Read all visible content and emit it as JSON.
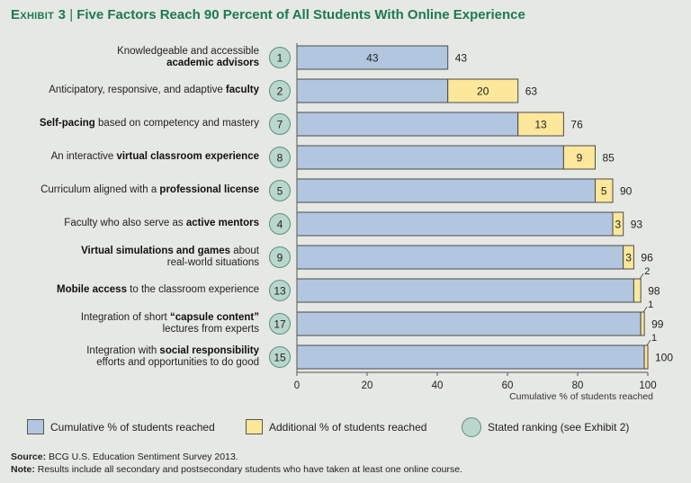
{
  "header": {
    "exhibit": "Exhibit 3",
    "separator": "|",
    "title": "Five Factors Reach 90 Percent of All Students With Online Experience"
  },
  "colors": {
    "cumulative": "#b3c6df",
    "additional": "#fde79b",
    "ranking_circle": "#b9d7cc",
    "title": "#1d7a52"
  },
  "rows": [
    {
      "line1_pre": "Knowledgeable and accessible",
      "line1_bold": "",
      "line1_post": "",
      "line2_pre": "",
      "line2_bold": "academic advisors",
      "line2_post": "",
      "rank": "1"
    },
    {
      "line1_pre": "Anticipatory, responsive, and adaptive ",
      "line1_bold": "faculty",
      "line1_post": "",
      "line2_pre": "",
      "line2_bold": "",
      "line2_post": "",
      "rank": "2"
    },
    {
      "line1_pre": "",
      "line1_bold": "Self-pacing",
      "line1_post": " based on competency and mastery",
      "line2_pre": "",
      "line2_bold": "",
      "line2_post": "",
      "rank": "7"
    },
    {
      "line1_pre": "An interactive ",
      "line1_bold": "virtual classroom experience",
      "line1_post": "",
      "line2_pre": "",
      "line2_bold": "",
      "line2_post": "",
      "rank": "8"
    },
    {
      "line1_pre": "Curriculum aligned with a ",
      "line1_bold": "professional license",
      "line1_post": "",
      "line2_pre": "",
      "line2_bold": "",
      "line2_post": "",
      "rank": "5"
    },
    {
      "line1_pre": "Faculty who also serve as ",
      "line1_bold": "active mentors",
      "line1_post": "",
      "line2_pre": "",
      "line2_bold": "",
      "line2_post": "",
      "rank": "4"
    },
    {
      "line1_pre": "",
      "line1_bold": "Virtual simulations and games",
      "line1_post": " about",
      "line2_pre": "real-world situations",
      "line2_bold": "",
      "line2_post": "",
      "rank": "9"
    },
    {
      "line1_pre": "",
      "line1_bold": "Mobile access",
      "line1_post": " to the classroom experience",
      "line2_pre": "",
      "line2_bold": "",
      "line2_post": "",
      "rank": "13"
    },
    {
      "line1_pre": "Integration of short ",
      "line1_bold": "“capsule content”",
      "line1_post": "",
      "line2_pre": "lectures from experts",
      "line2_bold": "",
      "line2_post": "",
      "rank": "17"
    },
    {
      "line1_pre": "Integration with ",
      "line1_bold": "social responsibility",
      "line1_post": "",
      "line2_pre": "efforts and opportunities to do good",
      "line2_bold": "",
      "line2_post": "",
      "rank": "15"
    }
  ],
  "chart_data": {
    "type": "bar",
    "orientation": "horizontal",
    "stacked": true,
    "categories": [
      "Knowledgeable and accessible academic advisors",
      "Anticipatory, responsive, and adaptive faculty",
      "Self-pacing based on competency and mastery",
      "An interactive virtual classroom experience",
      "Curriculum aligned with a professional license",
      "Faculty who also serve as active mentors",
      "Virtual simulations and games about real-world situations",
      "Mobile access to the classroom experience",
      "Integration of short “capsule content” lectures from experts",
      "Integration with social responsibility efforts and opportunities to do good"
    ],
    "series": [
      {
        "name": "Cumulative % of students reached",
        "values": [
          43,
          43,
          63,
          76,
          85,
          90,
          93,
          96,
          98,
          99
        ]
      },
      {
        "name": "Additional % of students reached",
        "values": [
          0,
          20,
          13,
          9,
          5,
          3,
          3,
          2,
          1,
          1
        ]
      }
    ],
    "totals": [
      43,
      63,
      76,
      85,
      90,
      93,
      96,
      98,
      99,
      100
    ],
    "xlabel": "Cumulative % of students reached",
    "xlim": [
      0,
      100
    ],
    "xticks": [
      0,
      20,
      40,
      60,
      80,
      100
    ],
    "grid": false,
    "legend": "bottom"
  },
  "legend": {
    "cumulative": "Cumulative % of students reached",
    "additional": "Additional % of students reached",
    "ranking": "Stated ranking (see Exhibit 2)"
  },
  "footer": {
    "source_label": "Source:",
    "source_text": " BCG U.S. Education Sentiment Survey 2013.",
    "note_label": "Note:",
    "note_text": " Results include all secondary and postsecondary students who have taken at least one online course."
  }
}
